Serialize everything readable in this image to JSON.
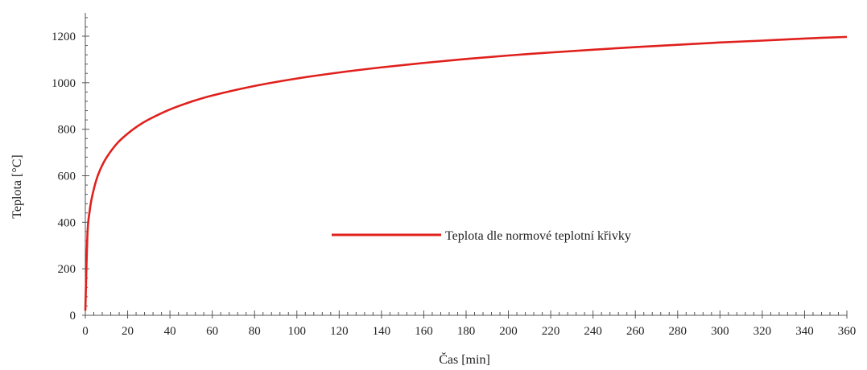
{
  "chart_data": {
    "type": "line",
    "xlabel": "Čas [min]",
    "ylabel": "Teplota [°C]",
    "xlim": [
      0,
      360
    ],
    "ylim": [
      0,
      1300
    ],
    "x_ticks": [
      0,
      20,
      40,
      60,
      80,
      100,
      120,
      140,
      160,
      180,
      200,
      220,
      240,
      260,
      280,
      300,
      320,
      340,
      360
    ],
    "y_ticks": [
      0,
      200,
      400,
      600,
      800,
      1000,
      1200
    ],
    "x_tick_labels": [
      "0",
      "20",
      "40",
      "60",
      "80",
      "100",
      "120",
      "140",
      "160",
      "180",
      "200",
      "220",
      "240",
      "260",
      "280",
      "300",
      "320",
      "340",
      "360"
    ],
    "y_tick_labels": [
      "0",
      "200",
      "400",
      "600",
      "800",
      "1000",
      "1200"
    ],
    "grid": false,
    "legend_position": "center-right",
    "series": [
      {
        "name": "Teplota dle normové teplotní křivky",
        "color": "#e0201c",
        "x": [
          0,
          1,
          2,
          3,
          5,
          7,
          10,
          15,
          20,
          25,
          30,
          40,
          50,
          60,
          80,
          100,
          120,
          140,
          160,
          180,
          200,
          220,
          240,
          260,
          280,
          300,
          320,
          340,
          360
        ],
        "y": [
          20,
          349,
          445,
          502,
          576,
          626,
          678,
          739,
          781,
          815,
          842,
          885,
          918,
          945,
          986,
          1018,
          1044,
          1066,
          1085,
          1102,
          1117,
          1130,
          1142,
          1153,
          1163,
          1173,
          1181,
          1190,
          1197
        ]
      }
    ]
  }
}
